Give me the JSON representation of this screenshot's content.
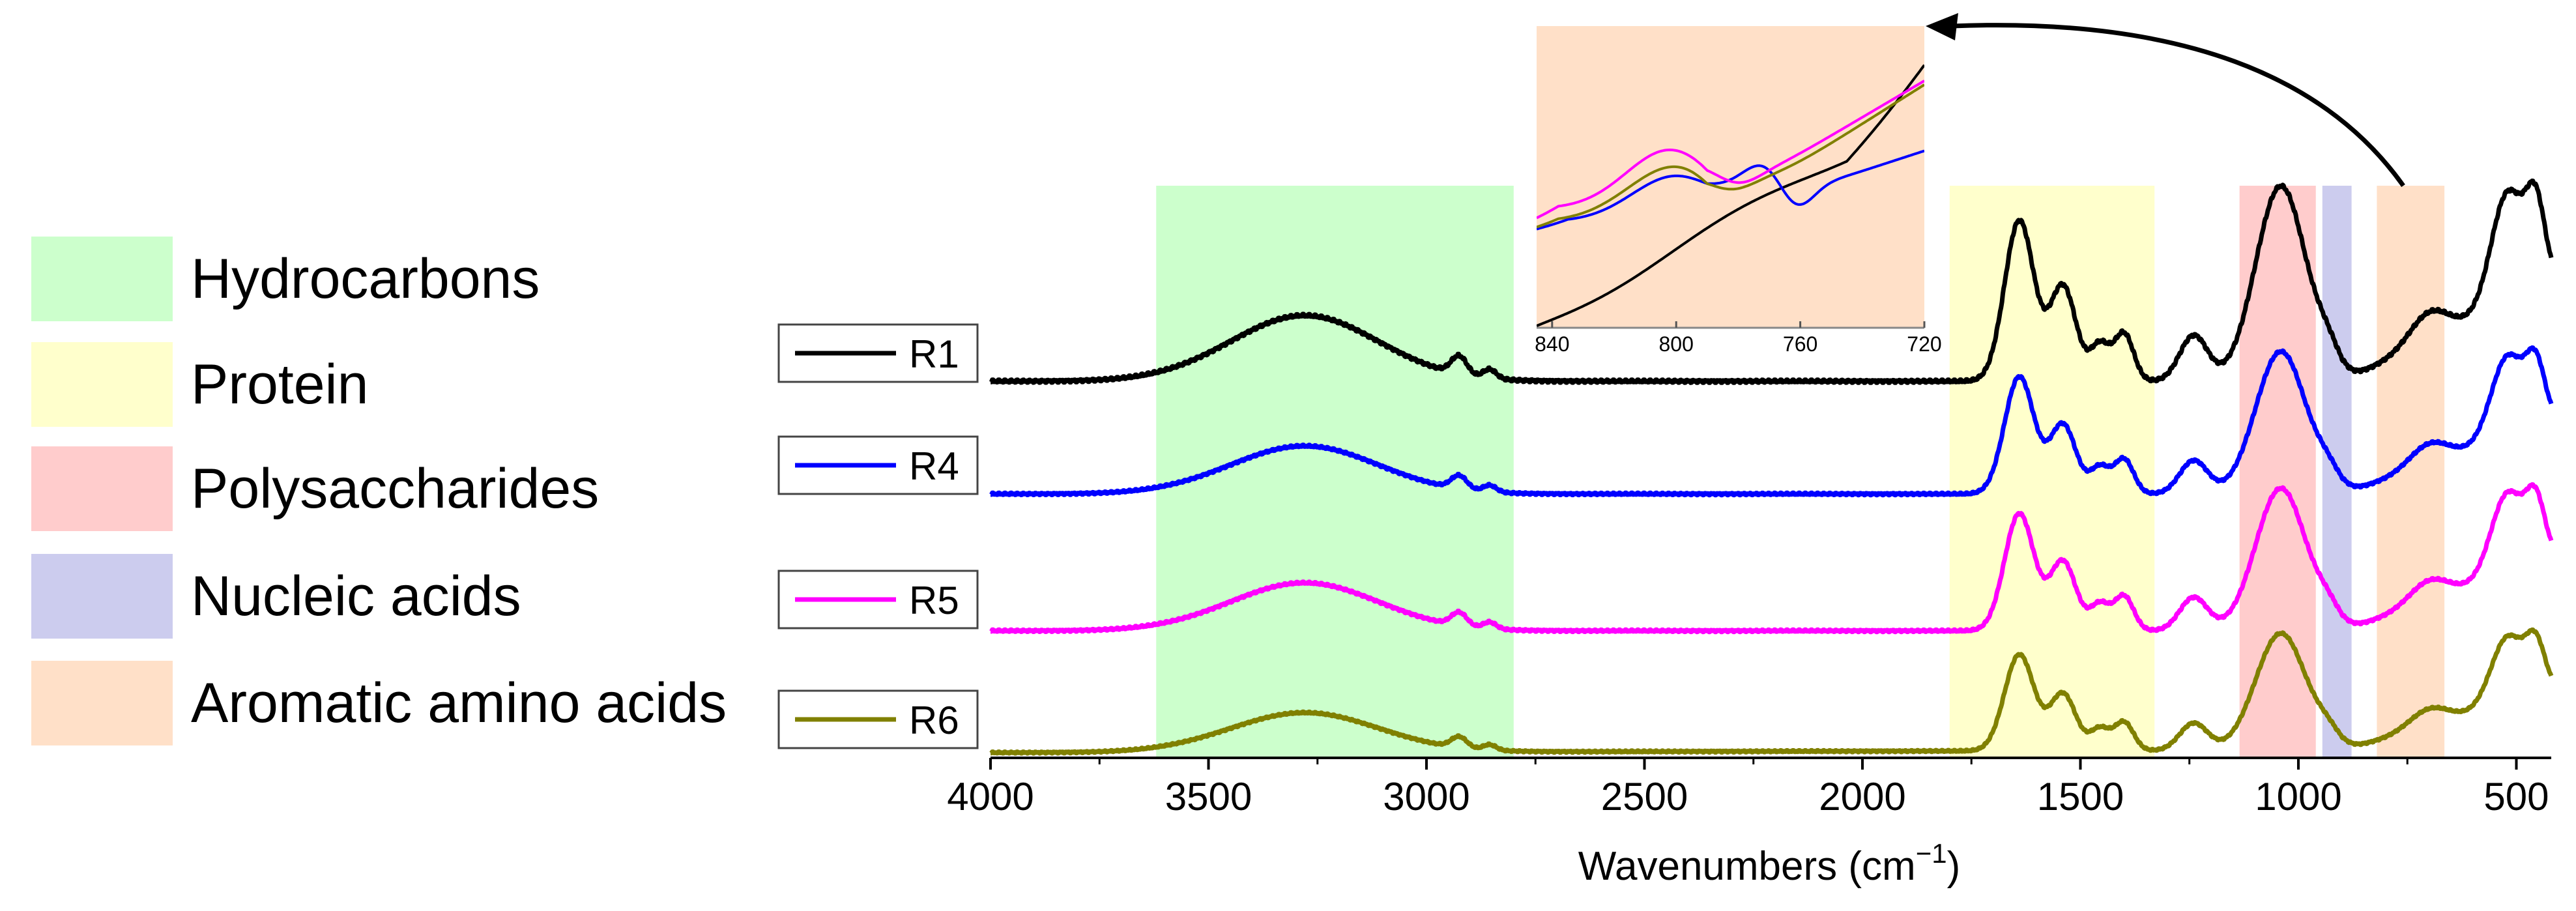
{
  "chart_data": {
    "type": "line",
    "title": "",
    "xlabel": "Wavenumbers (cm",
    "xlabel_sup": "−1",
    "xlabel_close": ")",
    "ylabel": "",
    "xlim": [
      4000,
      420
    ],
    "x_reversed": true,
    "x_ticks": [
      4000,
      3500,
      3000,
      2500,
      2000,
      1500,
      1000,
      500
    ],
    "x_tick_labels": [
      "4000",
      "3500",
      "3000",
      "2500",
      "2000",
      "1500",
      "1000",
      "500"
    ],
    "bands": [
      {
        "name": "Hydrocarbons",
        "from": 3620,
        "to": 2800,
        "color": "#ccffcc"
      },
      {
        "name": "Protein",
        "from": 1800,
        "to": 1330,
        "color": "#ffffcc"
      },
      {
        "name": "Polysaccharides",
        "from": 1135,
        "to": 960,
        "color": "#ffcccc"
      },
      {
        "name": "Nucleic acids",
        "from": 945,
        "to": 878,
        "color": "#ccccee"
      },
      {
        "name": "Aromatic amino acids",
        "from": 820,
        "to": 665,
        "color": "#ffe0c8"
      }
    ],
    "series": [
      {
        "name": "R1",
        "color": "#000000",
        "baseline": 0.0,
        "amplitude": 1.0,
        "baseline_slope": 0.0
      },
      {
        "name": "R4",
        "color": "#0000ff",
        "baseline": 0.0,
        "amplitude": 0.73,
        "baseline_slope": 0.0
      },
      {
        "name": "R5",
        "color": "#ff00ff",
        "baseline": 0.0,
        "amplitude": 0.73,
        "baseline_slope": 0.0
      },
      {
        "name": "R6",
        "color": "#808000",
        "baseline": 0.0,
        "amplitude": 0.6,
        "baseline_slope": 0.06
      }
    ],
    "legend_position": "left",
    "inset": {
      "xlim": [
        845,
        720
      ],
      "x_ticks": [
        840,
        800,
        760,
        720
      ],
      "x_tick_labels": [
        "840",
        "800",
        "760",
        "720"
      ],
      "background": "#ffe0c8"
    }
  }
}
